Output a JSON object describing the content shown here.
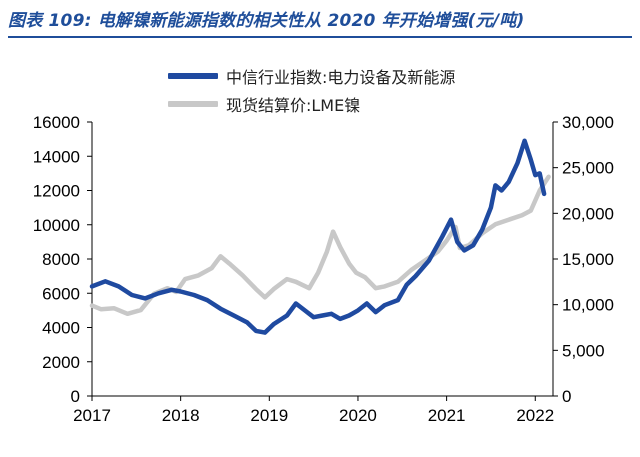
{
  "title": "图表 109: 电解镍新能源指数的相关性从 2020 年开始增强(元/吨)",
  "colors": {
    "title": "#1f4e9a",
    "series1": "#1f4aa0",
    "series2": "#c8c8c8",
    "axis": "#000000"
  },
  "chart_data": {
    "type": "line",
    "title": "图表 109: 电解镍新能源指数的相关性从 2020 年开始增强(元/吨)",
    "legend_position": "top-center",
    "grid": false,
    "x_ticks": [
      "2017",
      "2018",
      "2019",
      "2020",
      "2021",
      "2022"
    ],
    "x_range": [
      2017.0,
      2022.2
    ],
    "y_left": {
      "ticks": [
        "0",
        "2000",
        "4000",
        "6000",
        "8000",
        "10000",
        "12000",
        "14000",
        "16000"
      ],
      "range": [
        0,
        16000
      ]
    },
    "y_right": {
      "ticks": [
        "0",
        "5,000",
        "10,000",
        "15,000",
        "20,000",
        "25,000",
        "30,000"
      ],
      "range": [
        0,
        30000
      ]
    },
    "series": [
      {
        "name": "中信行业指数:电力设备及新能源",
        "axis": "left",
        "color": "#1f4aa0",
        "points": [
          [
            2017.0,
            6400
          ],
          [
            2017.15,
            6700
          ],
          [
            2017.3,
            6400
          ],
          [
            2017.45,
            5900
          ],
          [
            2017.6,
            5700
          ],
          [
            2017.75,
            6000
          ],
          [
            2017.9,
            6200
          ],
          [
            2018.0,
            6100
          ],
          [
            2018.15,
            5900
          ],
          [
            2018.3,
            5600
          ],
          [
            2018.45,
            5100
          ],
          [
            2018.6,
            4700
          ],
          [
            2018.75,
            4300
          ],
          [
            2018.85,
            3800
          ],
          [
            2018.95,
            3700
          ],
          [
            2019.05,
            4200
          ],
          [
            2019.2,
            4700
          ],
          [
            2019.3,
            5400
          ],
          [
            2019.4,
            5000
          ],
          [
            2019.5,
            4600
          ],
          [
            2019.6,
            4700
          ],
          [
            2019.7,
            4800
          ],
          [
            2019.8,
            4500
          ],
          [
            2019.9,
            4700
          ],
          [
            2020.0,
            5000
          ],
          [
            2020.1,
            5400
          ],
          [
            2020.2,
            4900
          ],
          [
            2020.3,
            5300
          ],
          [
            2020.45,
            5600
          ],
          [
            2020.55,
            6500
          ],
          [
            2020.65,
            7000
          ],
          [
            2020.8,
            7900
          ],
          [
            2020.95,
            9300
          ],
          [
            2021.05,
            10300
          ],
          [
            2021.12,
            9000
          ],
          [
            2021.2,
            8500
          ],
          [
            2021.3,
            8800
          ],
          [
            2021.4,
            9700
          ],
          [
            2021.5,
            11000
          ],
          [
            2021.55,
            12300
          ],
          [
            2021.62,
            12000
          ],
          [
            2021.7,
            12500
          ],
          [
            2021.8,
            13600
          ],
          [
            2021.88,
            14900
          ],
          [
            2021.95,
            13800
          ],
          [
            2022.0,
            12900
          ],
          [
            2022.05,
            13000
          ],
          [
            2022.1,
            11800
          ]
        ]
      },
      {
        "name": "现货结算价:LME镍",
        "axis": "right",
        "color": "#c8c8c8",
        "points": [
          [
            2017.0,
            9900
          ],
          [
            2017.1,
            9500
          ],
          [
            2017.25,
            9600
          ],
          [
            2017.4,
            9000
          ],
          [
            2017.55,
            9400
          ],
          [
            2017.7,
            11200
          ],
          [
            2017.85,
            11800
          ],
          [
            2017.95,
            11400
          ],
          [
            2018.05,
            12800
          ],
          [
            2018.2,
            13200
          ],
          [
            2018.35,
            14000
          ],
          [
            2018.45,
            15300
          ],
          [
            2018.55,
            14500
          ],
          [
            2018.7,
            13200
          ],
          [
            2018.85,
            11700
          ],
          [
            2018.95,
            10800
          ],
          [
            2019.05,
            11700
          ],
          [
            2019.2,
            12800
          ],
          [
            2019.3,
            12500
          ],
          [
            2019.45,
            11800
          ],
          [
            2019.55,
            13500
          ],
          [
            2019.65,
            15800
          ],
          [
            2019.72,
            18000
          ],
          [
            2019.8,
            16300
          ],
          [
            2019.9,
            14500
          ],
          [
            2019.98,
            13500
          ],
          [
            2020.08,
            13000
          ],
          [
            2020.2,
            11800
          ],
          [
            2020.3,
            12000
          ],
          [
            2020.45,
            12500
          ],
          [
            2020.6,
            13800
          ],
          [
            2020.75,
            14800
          ],
          [
            2020.9,
            15800
          ],
          [
            2021.0,
            17000
          ],
          [
            2021.1,
            18500
          ],
          [
            2021.15,
            16200
          ],
          [
            2021.25,
            16500
          ],
          [
            2021.4,
            17800
          ],
          [
            2021.55,
            18800
          ],
          [
            2021.7,
            19300
          ],
          [
            2021.85,
            19800
          ],
          [
            2021.95,
            20300
          ],
          [
            2022.05,
            22500
          ],
          [
            2022.15,
            24000
          ]
        ]
      }
    ]
  }
}
